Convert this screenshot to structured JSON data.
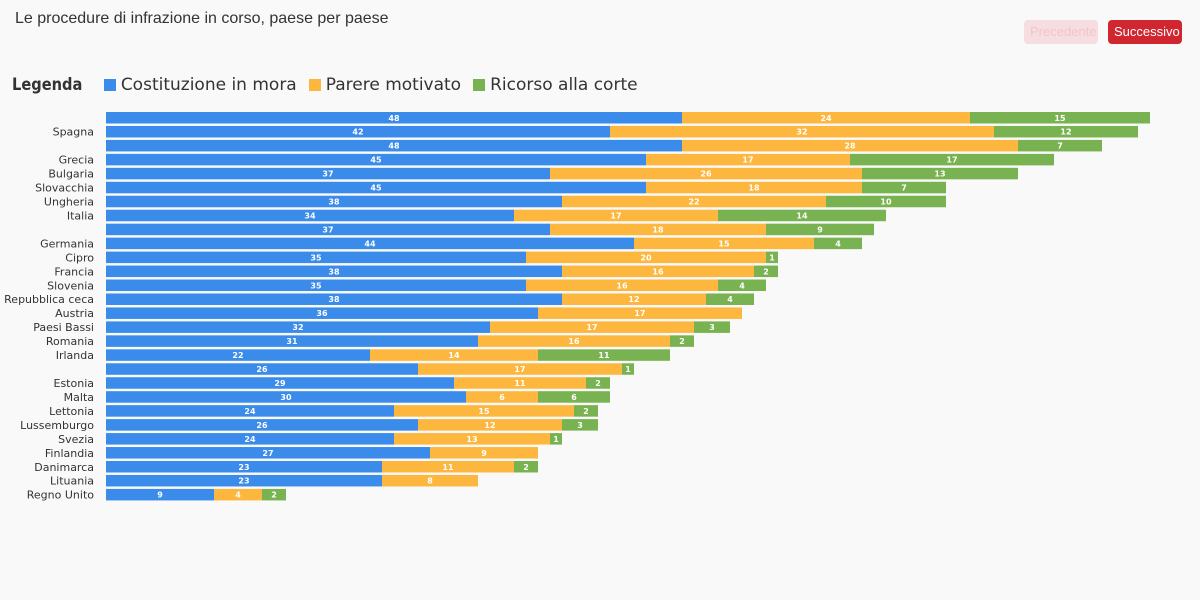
{
  "header": {
    "title": "Le procedure di infrazione in corso, paese per paese",
    "prev_label": "Precedente",
    "next_label": "Successivo"
  },
  "legend": {
    "title": "Legenda",
    "items": [
      {
        "label": "Costituzione in mora",
        "color": "#3a8bea"
      },
      {
        "label": "Parere motivato",
        "color": "#fdb73e"
      },
      {
        "label": "Ricorso alla corte",
        "color": "#79b251"
      }
    ]
  },
  "chart_data": {
    "type": "bar",
    "orientation": "horizontal",
    "stacked": true,
    "xlim": [
      0,
      90
    ],
    "grid": false,
    "legend_position": "top-left",
    "categories": [
      "",
      "Spagna",
      "",
      "Grecia",
      "Bulgaria",
      "Slovacchia",
      "Ungheria",
      "Italia",
      "",
      "Germania",
      "Cipro",
      "Francia",
      "Slovenia",
      "Repubblica ceca",
      "Austria",
      "Paesi Bassi",
      "Romania",
      "Irlanda",
      "",
      "Estonia",
      "Malta",
      "Lettonia",
      "Lussemburgo",
      "Svezia",
      "Finlandia",
      "Danimarca",
      "Lituania",
      "Regno Unito"
    ],
    "series": [
      {
        "name": "Costituzione in mora",
        "color": "#3a8bea",
        "values": [
          48,
          42,
          48,
          45,
          37,
          45,
          38,
          34,
          37,
          44,
          35,
          38,
          35,
          38,
          36,
          32,
          31,
          22,
          26,
          29,
          30,
          24,
          26,
          24,
          27,
          23,
          23,
          9
        ]
      },
      {
        "name": "Parere motivato",
        "color": "#fdb73e",
        "values": [
          24,
          32,
          28,
          17,
          26,
          18,
          22,
          17,
          18,
          15,
          20,
          16,
          16,
          12,
          17,
          17,
          16,
          14,
          17,
          11,
          6,
          15,
          12,
          13,
          9,
          11,
          8,
          4
        ]
      },
      {
        "name": "Ricorso alla corte",
        "color": "#79b251",
        "values": [
          15,
          12,
          7,
          17,
          13,
          7,
          10,
          14,
          9,
          4,
          1,
          2,
          4,
          4,
          0,
          3,
          2,
          11,
          1,
          2,
          6,
          2,
          3,
          1,
          0,
          2,
          0,
          2
        ]
      }
    ]
  }
}
